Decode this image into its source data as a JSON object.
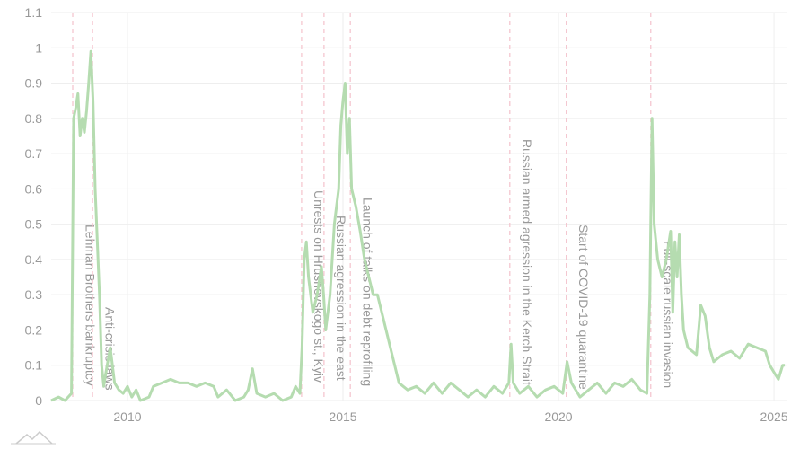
{
  "chart_data": {
    "type": "line",
    "x": [
      2008.23,
      2008.4,
      2008.55,
      2008.7,
      2008.75,
      2008.8,
      2008.85,
      2008.9,
      2008.95,
      2009.0,
      2009.05,
      2009.1,
      2009.15,
      2009.2,
      2009.25,
      2009.3,
      2009.35,
      2009.4,
      2009.45,
      2009.5,
      2009.6,
      2009.65,
      2009.7,
      2009.8,
      2009.9,
      2010.0,
      2010.1,
      2010.2,
      2010.3,
      2010.5,
      2010.6,
      2010.8,
      2011.0,
      2011.2,
      2011.4,
      2011.6,
      2011.8,
      2012.0,
      2012.1,
      2012.3,
      2012.5,
      2012.7,
      2012.8,
      2012.9,
      2013.0,
      2013.2,
      2013.4,
      2013.6,
      2013.8,
      2013.9,
      2014.0,
      2014.05,
      2014.1,
      2014.15,
      2014.2,
      2014.3,
      2014.4,
      2014.5,
      2014.55,
      2014.6,
      2014.7,
      2014.8,
      2014.9,
      2014.95,
      2015.0,
      2015.05,
      2015.1,
      2015.15,
      2015.2,
      2015.3,
      2015.4,
      2015.5,
      2015.6,
      2015.7,
      2015.8,
      2015.9,
      2016.0,
      2016.1,
      2016.2,
      2016.3,
      2016.5,
      2016.7,
      2016.9,
      2017.1,
      2017.3,
      2017.5,
      2017.7,
      2017.9,
      2018.1,
      2018.3,
      2018.5,
      2018.7,
      2018.85,
      2018.9,
      2018.95,
      2019.1,
      2019.3,
      2019.5,
      2019.7,
      2019.9,
      2020.1,
      2020.2,
      2020.3,
      2020.5,
      2020.7,
      2020.9,
      2021.1,
      2021.3,
      2021.5,
      2021.7,
      2021.9,
      2022.05,
      2022.12,
      2022.17,
      2022.22,
      2022.3,
      2022.4,
      2022.5,
      2022.6,
      2022.65,
      2022.7,
      2022.75,
      2022.8,
      2022.85,
      2022.9,
      2023.0,
      2023.2,
      2023.3,
      2023.4,
      2023.5,
      2023.6,
      2023.8,
      2024.0,
      2024.2,
      2024.4,
      2024.6,
      2024.8,
      2024.9,
      2025.0,
      2025.1,
      2025.2,
      2025.25
    ],
    "values": [
      0.0,
      0.01,
      0.0,
      0.02,
      0.8,
      0.83,
      0.87,
      0.75,
      0.8,
      0.76,
      0.82,
      0.9,
      0.99,
      0.85,
      0.6,
      0.45,
      0.3,
      0.1,
      0.04,
      0.08,
      0.15,
      0.1,
      0.05,
      0.03,
      0.02,
      0.04,
      0.01,
      0.03,
      0.0,
      0.01,
      0.04,
      0.05,
      0.06,
      0.05,
      0.05,
      0.04,
      0.05,
      0.04,
      0.01,
      0.03,
      0.0,
      0.01,
      0.03,
      0.09,
      0.02,
      0.01,
      0.02,
      0.0,
      0.01,
      0.04,
      0.02,
      0.15,
      0.4,
      0.45,
      0.35,
      0.25,
      0.3,
      0.38,
      0.3,
      0.2,
      0.3,
      0.5,
      0.6,
      0.78,
      0.85,
      0.9,
      0.7,
      0.8,
      0.6,
      0.55,
      0.48,
      0.4,
      0.35,
      0.3,
      0.3,
      0.25,
      0.2,
      0.15,
      0.1,
      0.05,
      0.03,
      0.04,
      0.02,
      0.05,
      0.02,
      0.05,
      0.03,
      0.01,
      0.03,
      0.01,
      0.04,
      0.02,
      0.05,
      0.16,
      0.05,
      0.02,
      0.04,
      0.01,
      0.03,
      0.04,
      0.02,
      0.11,
      0.05,
      0.01,
      0.03,
      0.05,
      0.02,
      0.05,
      0.04,
      0.06,
      0.03,
      0.02,
      0.3,
      0.8,
      0.5,
      0.4,
      0.35,
      0.4,
      0.48,
      0.25,
      0.45,
      0.35,
      0.47,
      0.3,
      0.2,
      0.15,
      0.13,
      0.27,
      0.24,
      0.15,
      0.11,
      0.13,
      0.14,
      0.12,
      0.16,
      0.15,
      0.14,
      0.1,
      0.08,
      0.06,
      0.1,
      0.1
    ],
    "color": "#b5dcb0",
    "xlim": [
      2008.23,
      2025.29
    ],
    "ylim": [
      0,
      1.1
    ],
    "xticks": [
      2010,
      2015,
      2020,
      2025
    ],
    "yticks": [
      0,
      0.1,
      0.2,
      0.3,
      0.4,
      0.5,
      0.6,
      0.7,
      0.8,
      0.9,
      1,
      1.1
    ],
    "grid": true,
    "annotations": [
      {
        "x": 2008.73,
        "label": "Lehman Brothers bankruptcy"
      },
      {
        "x": 2009.19,
        "label": "Anti-crisis laws"
      },
      {
        "x": 2014.04,
        "label": "Unrests on Hrushevskogo st., Kyiv"
      },
      {
        "x": 2014.56,
        "label": "Russian agression in the east"
      },
      {
        "x": 2015.17,
        "label": "Launch of talks on debt reprofiling"
      },
      {
        "x": 2018.87,
        "label": "Russian armed agression in the Kerch Strait"
      },
      {
        "x": 2020.18,
        "label": "Start of COVID-19 quarantine"
      },
      {
        "x": 2022.14,
        "label": "Full-scale russian invasion"
      }
    ]
  }
}
